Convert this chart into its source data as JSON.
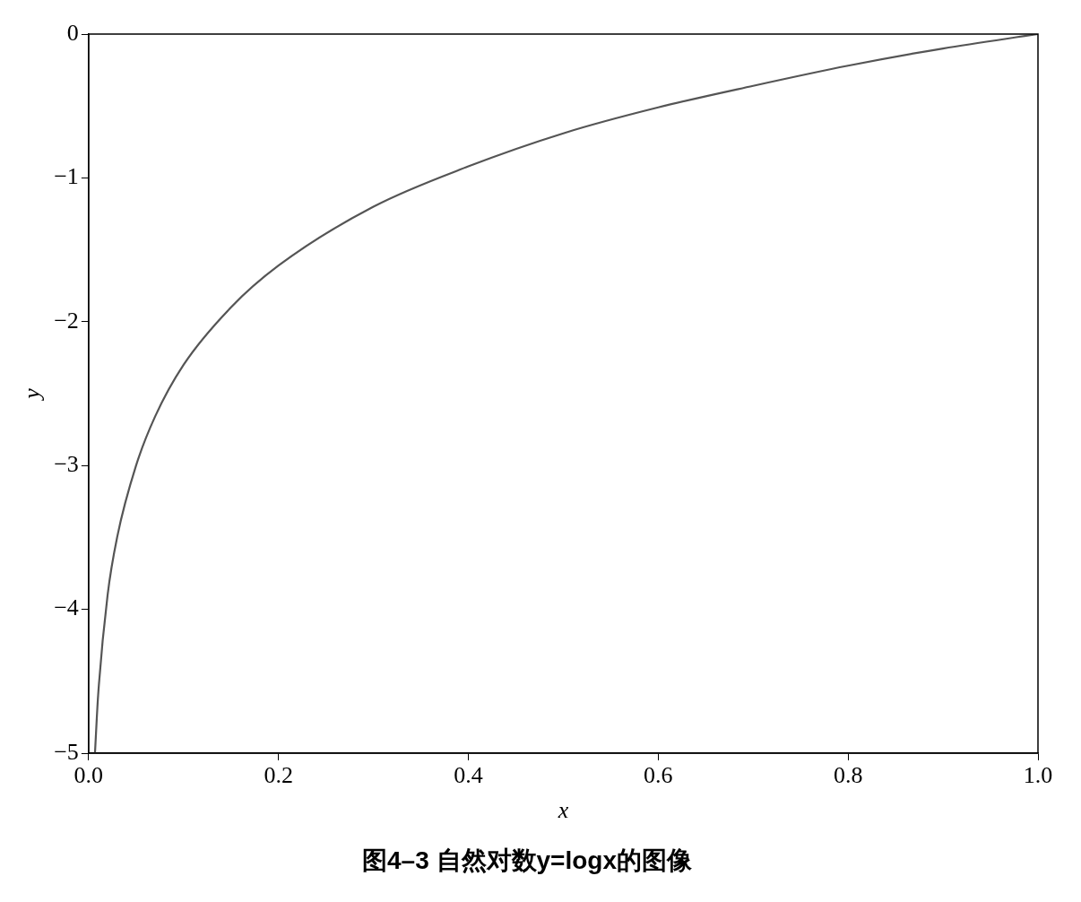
{
  "chart_data": {
    "type": "line",
    "title": "图4–3 自然对数y=logx的图像",
    "xlabel": "x",
    "ylabel": "y",
    "x": [
      0.0067,
      0.01,
      0.02,
      0.03,
      0.05,
      0.07,
      0.1,
      0.15,
      0.2,
      0.3,
      0.4,
      0.5,
      0.6,
      0.7,
      0.8,
      0.9,
      1.0
    ],
    "series": [
      {
        "color": "#555555",
        "values": [
          -5,
          -4.6,
          -3.9,
          -3.5,
          -3.0,
          -2.66,
          -2.3,
          -1.9,
          -1.61,
          -1.2,
          -0.92,
          -0.69,
          -0.51,
          -0.36,
          -0.22,
          -0.1,
          0
        ]
      }
    ],
    "xlim": [
      0,
      1
    ],
    "ylim": [
      -5,
      0
    ],
    "xticks": [
      {
        "value": 0,
        "label": "0.0"
      },
      {
        "value": 0.2,
        "label": "0.2"
      },
      {
        "value": 0.4,
        "label": "0.4"
      },
      {
        "value": 0.6,
        "label": "0.6"
      },
      {
        "value": 0.8,
        "label": "0.8"
      },
      {
        "value": 1,
        "label": "1.0"
      }
    ],
    "yticks": [
      {
        "value": -5,
        "label": "−5"
      },
      {
        "value": -4,
        "label": "−4"
      },
      {
        "value": -3,
        "label": "−3"
      },
      {
        "value": -2,
        "label": "−2"
      },
      {
        "value": -1,
        "label": "−1"
      },
      {
        "value": 0,
        "label": "0"
      }
    ],
    "grid": false,
    "legend": false,
    "marker": "none",
    "line_style": "solid"
  }
}
